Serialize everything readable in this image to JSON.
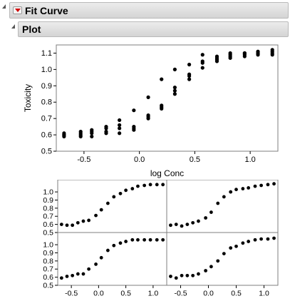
{
  "report": {
    "fit_curve_title": "Fit Curve",
    "plot_title": "Plot"
  },
  "colors": {
    "points": "#000000",
    "frame": "#7f7f7f",
    "header_bg": "#dcdcdc"
  },
  "icons": {
    "disclosure": "disclosure-triangle-icon",
    "menu": "red-triangle-menu-icon"
  },
  "chart_data": [
    {
      "type": "scatter",
      "xlabel": "log Conc",
      "ylabel": "Toxicity",
      "xlim": [
        -0.75,
        1.25
      ],
      "ylim": [
        0.5,
        1.15
      ],
      "xticks": [
        "-0.5",
        "0.0",
        "0.5",
        "1.0"
      ],
      "yticks": [
        "0.5",
        "0.6",
        "0.7",
        "0.8",
        "0.9",
        "1.0",
        "1.1"
      ],
      "grid": false,
      "points": [
        [
          -0.68,
          0.59
        ],
        [
          -0.68,
          0.6
        ],
        [
          -0.68,
          0.6
        ],
        [
          -0.68,
          0.61
        ],
        [
          -0.53,
          0.59
        ],
        [
          -0.53,
          0.6
        ],
        [
          -0.53,
          0.61
        ],
        [
          -0.53,
          0.62
        ],
        [
          -0.43,
          0.59
        ],
        [
          -0.43,
          0.61
        ],
        [
          -0.43,
          0.62
        ],
        [
          -0.43,
          0.63
        ],
        [
          -0.3,
          0.61
        ],
        [
          -0.3,
          0.62
        ],
        [
          -0.3,
          0.64
        ],
        [
          -0.3,
          0.65
        ],
        [
          -0.18,
          0.61
        ],
        [
          -0.18,
          0.64
        ],
        [
          -0.18,
          0.66
        ],
        [
          -0.18,
          0.69
        ],
        [
          -0.05,
          0.63
        ],
        [
          -0.05,
          0.64
        ],
        [
          -0.05,
          0.65
        ],
        [
          -0.05,
          0.75
        ],
        [
          0.08,
          0.7
        ],
        [
          0.08,
          0.71
        ],
        [
          0.08,
          0.72
        ],
        [
          0.08,
          0.83
        ],
        [
          0.2,
          0.76
        ],
        [
          0.2,
          0.77
        ],
        [
          0.2,
          0.78
        ],
        [
          0.2,
          0.94
        ],
        [
          0.32,
          0.85
        ],
        [
          0.32,
          0.87
        ],
        [
          0.32,
          0.89
        ],
        [
          0.32,
          1.0
        ],
        [
          0.45,
          0.94
        ],
        [
          0.45,
          0.96
        ],
        [
          0.45,
          0.97
        ],
        [
          0.45,
          1.03
        ],
        [
          0.57,
          1.01
        ],
        [
          0.57,
          1.04
        ],
        [
          0.57,
          1.05
        ],
        [
          0.57,
          1.09
        ],
        [
          0.7,
          1.05
        ],
        [
          0.7,
          1.06
        ],
        [
          0.7,
          1.07
        ],
        [
          0.7,
          1.08
        ],
        [
          0.82,
          1.07
        ],
        [
          0.82,
          1.08
        ],
        [
          0.82,
          1.09
        ],
        [
          0.82,
          1.1
        ],
        [
          0.95,
          1.08
        ],
        [
          0.95,
          1.09
        ],
        [
          0.95,
          1.1
        ],
        [
          0.95,
          1.1
        ],
        [
          1.07,
          1.09
        ],
        [
          1.07,
          1.1
        ],
        [
          1.07,
          1.1
        ],
        [
          1.07,
          1.11
        ],
        [
          1.2,
          1.09
        ],
        [
          1.2,
          1.1
        ],
        [
          1.2,
          1.11
        ],
        [
          1.2,
          1.12
        ]
      ]
    },
    {
      "type": "scatter",
      "xlim": [
        -0.75,
        1.25
      ],
      "ylim": [
        0.5,
        1.15
      ],
      "xticks": [
        "-0.5",
        "0.0",
        "0.5",
        "1.0"
      ],
      "yticks": [
        "0.5",
        "0.6",
        "0.7",
        "0.8",
        "0.9",
        "1.0"
      ],
      "x": [
        -0.68,
        -0.58,
        -0.48,
        -0.38,
        -0.28,
        -0.18,
        -0.05,
        0.05,
        0.17,
        0.28,
        0.4,
        0.5,
        0.62,
        0.72,
        0.84,
        0.95,
        1.07,
        1.18
      ],
      "y": [
        0.6,
        0.59,
        0.59,
        0.62,
        0.64,
        0.65,
        0.71,
        0.78,
        0.86,
        0.94,
        0.98,
        1.02,
        1.04,
        1.07,
        1.08,
        1.09,
        1.09,
        1.09
      ]
    },
    {
      "type": "scatter",
      "xlim": [
        -0.75,
        1.25
      ],
      "ylim": [
        0.5,
        1.15
      ],
      "xticks": [
        "-0.5",
        "0.0",
        "0.5",
        "1.0"
      ],
      "yticks": [],
      "x": [
        -0.68,
        -0.58,
        -0.48,
        -0.38,
        -0.28,
        -0.18,
        -0.05,
        0.05,
        0.17,
        0.28,
        0.4,
        0.5,
        0.62,
        0.72,
        0.84,
        0.95,
        1.07,
        1.18
      ],
      "y": [
        0.59,
        0.6,
        0.58,
        0.6,
        0.62,
        0.64,
        0.68,
        0.75,
        0.86,
        0.94,
        1.0,
        1.03,
        1.04,
        1.05,
        1.07,
        1.08,
        1.09,
        1.1
      ]
    },
    {
      "type": "scatter",
      "xlim": [
        -0.75,
        1.25
      ],
      "ylim": [
        0.5,
        1.15
      ],
      "xticks": [
        "-0.5",
        "0.0",
        "0.5",
        "1.0"
      ],
      "yticks": [
        "0.5",
        "0.6",
        "0.7",
        "0.8",
        "0.9",
        "1.0"
      ],
      "x": [
        -0.68,
        -0.58,
        -0.48,
        -0.38,
        -0.28,
        -0.18,
        -0.05,
        0.05,
        0.17,
        0.28,
        0.4,
        0.5,
        0.62,
        0.72,
        0.84,
        0.95,
        1.07,
        1.18
      ],
      "y": [
        0.59,
        0.61,
        0.62,
        0.64,
        0.64,
        0.7,
        0.76,
        0.84,
        0.93,
        0.99,
        1.02,
        1.04,
        1.06,
        1.06,
        1.06,
        1.06,
        1.06,
        1.06
      ]
    },
    {
      "type": "scatter",
      "xlim": [
        -0.75,
        1.25
      ],
      "ylim": [
        0.5,
        1.15
      ],
      "xticks": [
        "-0.5",
        "0.0",
        "0.5",
        "1.0"
      ],
      "yticks": [],
      "x": [
        -0.68,
        -0.58,
        -0.48,
        -0.38,
        -0.28,
        -0.18,
        -0.05,
        0.05,
        0.17,
        0.28,
        0.4,
        0.5,
        0.62,
        0.72,
        0.84,
        0.95,
        1.07,
        1.18
      ],
      "y": [
        0.61,
        0.59,
        0.62,
        0.62,
        0.62,
        0.64,
        0.68,
        0.73,
        0.8,
        0.89,
        0.96,
        0.98,
        1.02,
        1.04,
        1.06,
        1.07,
        1.07,
        1.08
      ]
    }
  ]
}
